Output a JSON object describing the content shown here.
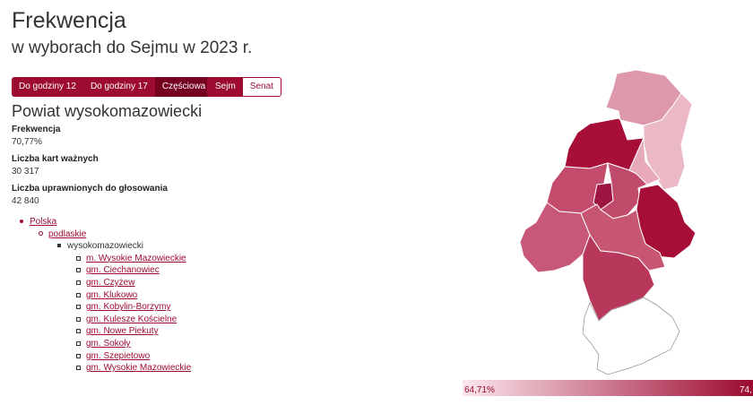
{
  "header": {
    "title": "Frekwencja",
    "subtitle": "w wyborach do Sejmu w 2023 r."
  },
  "time_buttons": [
    {
      "label": "Do godziny 12",
      "active": false
    },
    {
      "label": "Do godziny 17",
      "active": false
    },
    {
      "label": "Częściowa",
      "active": true
    }
  ],
  "chamber_buttons": [
    {
      "label": "Sejm",
      "active": true
    },
    {
      "label": "Senat",
      "active": false
    }
  ],
  "region": {
    "name": "Powiat wysokomazowiecki",
    "stats": [
      {
        "label": "Frekwencja",
        "value": "70,77%"
      },
      {
        "label": "Liczba kart ważnych",
        "value": "30 317"
      },
      {
        "label": "Liczba uprawnionych do głosowania",
        "value": "42 840"
      }
    ]
  },
  "breadcrumb": {
    "country": "Polska",
    "voivodeship": "podlaskie",
    "county": "wysokomazowiecki",
    "municipalities": [
      "m. Wysokie Mazowieckie",
      "gm. Ciechanowiec",
      "gm. Czyżew",
      "gm. Klukowo",
      "gm. Kobylin-Borzymy",
      "gm. Kulesze Kościelne",
      "gm. Nowe Piekuty",
      "gm. Sokoły",
      "gm. Szepietowo",
      "gm. Wysokie Mazowieckie"
    ]
  },
  "legend": {
    "min": "64,71%",
    "max": "74,"
  },
  "colors": {
    "accent": "#9d0b32",
    "accent_dark": "#75001f",
    "scale_low": "#fbe6ec",
    "scale_high": "#9d0b32"
  }
}
